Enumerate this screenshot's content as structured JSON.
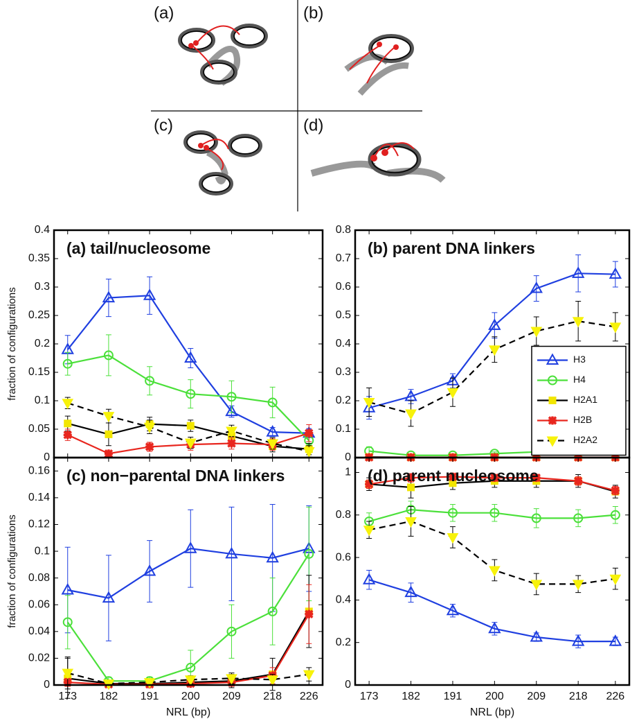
{
  "diagram": {
    "labels": [
      "(a)",
      "(b)",
      "(c)",
      "(d)"
    ]
  },
  "chart_data": [
    {
      "type": "line",
      "title": "(a) tail/nucleosome",
      "ylabel": "fraction of configurations",
      "show_xticklabels": false,
      "legend": false,
      "x": [
        173,
        182,
        191,
        200,
        209,
        218,
        226
      ],
      "xlim": [
        170,
        229
      ],
      "xticks": [
        173,
        182,
        191,
        200,
        209,
        218,
        226
      ],
      "ylim": [
        0,
        0.4
      ],
      "yticks": [
        0,
        0.05,
        0.1,
        0.15,
        0.2,
        0.25,
        0.3,
        0.35,
        0.4
      ],
      "series": [
        {
          "name": "H3",
          "color": "#1f3fe0",
          "marker": "triangle-up",
          "marker_color": "#1f3fe0",
          "dash": false,
          "values": [
            0.19,
            0.281,
            0.285,
            0.175,
            0.081,
            0.045,
            0.043
          ],
          "errors": [
            0.025,
            0.033,
            0.033,
            0.017,
            0.01,
            0.008,
            0.008
          ]
        },
        {
          "name": "H4",
          "color": "#4be03a",
          "marker": "circle",
          "marker_color": "#4be03a",
          "dash": false,
          "values": [
            0.165,
            0.18,
            0.135,
            0.112,
            0.107,
            0.097,
            0.03
          ],
          "errors": [
            0.02,
            0.036,
            0.025,
            0.025,
            0.028,
            0.027,
            0.01
          ]
        },
        {
          "name": "H2A1",
          "color": "#000000",
          "marker": "square",
          "marker_color": "#f2e600",
          "dash": false,
          "values": [
            0.06,
            0.041,
            0.059,
            0.056,
            0.038,
            0.02,
            0.015
          ],
          "errors": [
            0.013,
            0.02,
            0.012,
            0.01,
            0.012,
            0.01,
            0.01
          ]
        },
        {
          "name": "H2B",
          "color": "#e8261e",
          "marker": "star",
          "marker_color": "#e8261e",
          "dash": false,
          "values": [
            0.04,
            0.007,
            0.019,
            0.023,
            0.025,
            0.023,
            0.043
          ],
          "errors": [
            0.01,
            0.005,
            0.008,
            0.01,
            0.01,
            0.01,
            0.015
          ]
        },
        {
          "name": "H2A2",
          "color": "#000000",
          "marker": "triangle-down",
          "marker_color": "#f7f20a",
          "dash": true,
          "values": [
            0.096,
            0.073,
            0.054,
            0.026,
            0.047,
            0.025,
            0.011
          ],
          "errors": [
            0.01,
            0.012,
            0.012,
            0.01,
            0.01,
            0.01,
            0.01
          ]
        }
      ]
    },
    {
      "type": "line",
      "title": "(b) parent DNA linkers",
      "show_xticklabels": false,
      "legend": "center right",
      "x": [
        173,
        182,
        191,
        200,
        209,
        218,
        226
      ],
      "xlim": [
        170,
        229
      ],
      "xticks": [
        173,
        182,
        191,
        200,
        209,
        218,
        226
      ],
      "ylim": [
        0,
        0.8
      ],
      "yticks": [
        0,
        0.1,
        0.2,
        0.3,
        0.4,
        0.5,
        0.6,
        0.7,
        0.8
      ],
      "series": [
        {
          "name": "H3",
          "color": "#1f3fe0",
          "marker": "triangle-up",
          "marker_color": "#1f3fe0",
          "dash": false,
          "values": [
            0.175,
            0.215,
            0.27,
            0.465,
            0.595,
            0.648,
            0.645
          ],
          "errors": [
            0.04,
            0.025,
            0.025,
            0.045,
            0.045,
            0.065,
            0.045
          ]
        },
        {
          "name": "H4",
          "color": "#4be03a",
          "marker": "circle",
          "marker_color": "#4be03a",
          "dash": false,
          "values": [
            0.023,
            0.008,
            0.008,
            0.014,
            0.02,
            0.027,
            0.027
          ],
          "errors": [
            0.015,
            0.005,
            0.005,
            0.006,
            0.01,
            0.02,
            0.02
          ]
        },
        {
          "name": "H2A1",
          "color": "#000000",
          "marker": "square",
          "marker_color": "#f2e600",
          "dash": false,
          "values": [
            0.002,
            0.001,
            0.001,
            0.001,
            0.001,
            0.001,
            0.001
          ],
          "errors": [
            0.002,
            0.002,
            0.002,
            0.002,
            0.002,
            0.002,
            0.002
          ]
        },
        {
          "name": "H2B",
          "color": "#e8261e",
          "marker": "star",
          "marker_color": "#e8261e",
          "dash": false,
          "values": [
            0.001,
            0.001,
            0.001,
            0.001,
            0.001,
            0.001,
            0.001
          ],
          "errors": [
            0.001,
            0.001,
            0.001,
            0.001,
            0.001,
            0.001,
            0.001
          ]
        },
        {
          "name": "H2A2",
          "color": "#000000",
          "marker": "triangle-down",
          "marker_color": "#f7f20a",
          "dash": true,
          "values": [
            0.195,
            0.155,
            0.23,
            0.38,
            0.445,
            0.48,
            0.46
          ],
          "errors": [
            0.05,
            0.045,
            0.05,
            0.045,
            0.05,
            0.07,
            0.05
          ]
        }
      ]
    },
    {
      "type": "line",
      "title": "(c) non−parental DNA linkers",
      "ylabel": "fraction of configurations",
      "xlabel": "NRL (bp)",
      "show_xticklabels": true,
      "legend": false,
      "x": [
        173,
        182,
        191,
        200,
        209,
        218,
        226
      ],
      "xlim": [
        170,
        229
      ],
      "xticks": [
        173,
        182,
        191,
        200,
        209,
        218,
        226
      ],
      "ylim": [
        0,
        0.17
      ],
      "yticks": [
        0,
        0.02,
        0.04,
        0.06,
        0.08,
        0.1,
        0.12,
        0.14,
        0.16
      ],
      "series": [
        {
          "name": "H3",
          "color": "#1f3fe0",
          "marker": "triangle-up",
          "marker_color": "#1f3fe0",
          "dash": false,
          "values": [
            0.071,
            0.065,
            0.085,
            0.102,
            0.098,
            0.095,
            0.102
          ],
          "errors": [
            0.032,
            0.032,
            0.023,
            0.029,
            0.035,
            0.04,
            0.032
          ]
        },
        {
          "name": "H4",
          "color": "#4be03a",
          "marker": "circle",
          "marker_color": "#4be03a",
          "dash": false,
          "values": [
            0.047,
            0.003,
            0.003,
            0.013,
            0.04,
            0.055,
            0.098
          ],
          "errors": [
            0.02,
            0.003,
            0.003,
            0.013,
            0.02,
            0.025,
            0.035
          ]
        },
        {
          "name": "H2A1",
          "color": "#000000",
          "marker": "square",
          "marker_color": "#f2e600",
          "dash": false,
          "values": [
            0.005,
            0.001,
            0.001,
            0.002,
            0.003,
            0.008,
            0.055
          ],
          "errors": [
            0.015,
            0.001,
            0.001,
            0.002,
            0.005,
            0.012,
            0.027
          ]
        },
        {
          "name": "H2B",
          "color": "#e8261e",
          "marker": "star",
          "marker_color": "#e8261e",
          "dash": false,
          "values": [
            0.002,
            0.0005,
            0.0005,
            0.001,
            0.002,
            0.007,
            0.053
          ],
          "errors": [
            0.003,
            0.001,
            0.001,
            0.001,
            0.003,
            0.006,
            0.022
          ]
        },
        {
          "name": "H2A2",
          "color": "#000000",
          "marker": "triangle-down",
          "marker_color": "#f7f20a",
          "dash": true,
          "values": [
            0.009,
            0.001,
            0.002,
            0.004,
            0.005,
            0.004,
            0.008
          ],
          "errors": [
            0.012,
            0.002,
            0.002,
            0.003,
            0.004,
            0.004,
            0.005
          ]
        }
      ]
    },
    {
      "type": "line",
      "title": "(d) parent nucleosome",
      "xlabel": "NRL (bp)",
      "show_xticklabels": true,
      "legend": false,
      "x": [
        173,
        182,
        191,
        200,
        209,
        218,
        226
      ],
      "xlim": [
        170,
        229
      ],
      "xticks": [
        173,
        182,
        191,
        200,
        209,
        218,
        226
      ],
      "ylim": [
        0,
        1.07
      ],
      "yticks": [
        0,
        0.2,
        0.4,
        0.6,
        0.8,
        1
      ],
      "series": [
        {
          "name": "H3",
          "color": "#1f3fe0",
          "marker": "triangle-up",
          "marker_color": "#1f3fe0",
          "dash": false,
          "values": [
            0.495,
            0.435,
            0.35,
            0.265,
            0.225,
            0.205,
            0.205
          ],
          "errors": [
            0.045,
            0.045,
            0.03,
            0.03,
            0.02,
            0.03,
            0.02
          ]
        },
        {
          "name": "H4",
          "color": "#4be03a",
          "marker": "circle",
          "marker_color": "#4be03a",
          "dash": false,
          "values": [
            0.77,
            0.825,
            0.81,
            0.81,
            0.785,
            0.785,
            0.8
          ],
          "errors": [
            0.04,
            0.04,
            0.04,
            0.04,
            0.045,
            0.04,
            0.04
          ]
        },
        {
          "name": "H2A1",
          "color": "#000000",
          "marker": "square",
          "marker_color": "#f2e600",
          "dash": false,
          "values": [
            0.945,
            0.93,
            0.95,
            0.96,
            0.96,
            0.96,
            0.91
          ],
          "errors": [
            0.03,
            0.05,
            0.03,
            0.03,
            0.03,
            0.03,
            0.03
          ]
        },
        {
          "name": "H2B",
          "color": "#e8261e",
          "marker": "star",
          "marker_color": "#e8261e",
          "dash": false,
          "values": [
            0.945,
            0.975,
            0.98,
            0.975,
            0.975,
            0.96,
            0.915
          ],
          "errors": [
            0.02,
            0.02,
            0.015,
            0.015,
            0.015,
            0.02,
            0.02
          ]
        },
        {
          "name": "H2A2",
          "color": "#000000",
          "marker": "triangle-down",
          "marker_color": "#f7f20a",
          "dash": true,
          "values": [
            0.73,
            0.77,
            0.695,
            0.54,
            0.475,
            0.475,
            0.5
          ],
          "errors": [
            0.04,
            0.07,
            0.05,
            0.05,
            0.05,
            0.04,
            0.05
          ]
        }
      ]
    }
  ]
}
